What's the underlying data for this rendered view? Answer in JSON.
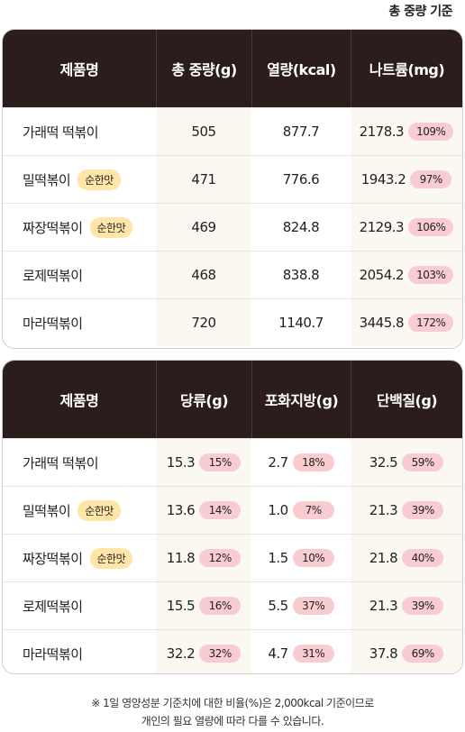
{
  "basis_label": "총 중량 기준",
  "table1": {
    "headers": [
      "제품명",
      "총 중량(g)",
      "열량(kcal)",
      "나트륨(mg)"
    ],
    "rows": [
      {
        "name": "가래떡 떡볶이",
        "tag": "",
        "weight": "505",
        "kcal": "877.7",
        "sodium": "2178.3",
        "sodium_pct": "109%"
      },
      {
        "name": "밀떡볶이",
        "tag": "순한맛",
        "weight": "471",
        "kcal": "776.6",
        "sodium": "1943.2",
        "sodium_pct": "97%"
      },
      {
        "name": "짜장떡볶이",
        "tag": "순한맛",
        "weight": "469",
        "kcal": "824.8",
        "sodium": "2129.3",
        "sodium_pct": "106%"
      },
      {
        "name": "로제떡볶이",
        "tag": "",
        "weight": "468",
        "kcal": "838.8",
        "sodium": "2054.2",
        "sodium_pct": "103%"
      },
      {
        "name": "마라떡볶이",
        "tag": "",
        "weight": "720",
        "kcal": "1140.7",
        "sodium": "3445.8",
        "sodium_pct": "172%"
      }
    ]
  },
  "table2": {
    "headers": [
      "제품명",
      "당류(g)",
      "포화지방(g)",
      "단백질(g)"
    ],
    "rows": [
      {
        "name": "가래떡 떡볶이",
        "tag": "",
        "sugar": "15.3",
        "sugar_pct": "15%",
        "satfat": "2.7",
        "satfat_pct": "18%",
        "protein": "32.5",
        "protein_pct": "59%"
      },
      {
        "name": "밀떡볶이",
        "tag": "순한맛",
        "sugar": "13.6",
        "sugar_pct": "14%",
        "satfat": "1.0",
        "satfat_pct": "7%",
        "protein": "21.3",
        "protein_pct": "39%"
      },
      {
        "name": "짜장떡볶이",
        "tag": "순한맛",
        "sugar": "11.8",
        "sugar_pct": "12%",
        "satfat": "1.5",
        "satfat_pct": "10%",
        "protein": "21.8",
        "protein_pct": "40%"
      },
      {
        "name": "로제떡볶이",
        "tag": "",
        "sugar": "15.5",
        "sugar_pct": "16%",
        "satfat": "5.5",
        "satfat_pct": "37%",
        "protein": "21.3",
        "protein_pct": "39%"
      },
      {
        "name": "마라떡볶이",
        "tag": "",
        "sugar": "32.2",
        "sugar_pct": "32%",
        "satfat": "4.7",
        "satfat_pct": "31%",
        "protein": "37.8",
        "protein_pct": "69%"
      }
    ]
  },
  "footnote_line1": "※ 1일 영양성분 기준치에 대한 비율(%)은 2,000kcal 기준이므로",
  "footnote_line2": "개인의 필요 열량에 따라 다를 수 있습니다.",
  "colors": {
    "header_bg": "#2b1d1b",
    "tag_bg": "#ffe6a8",
    "pct_pill_bg": "#f9ccd0",
    "alt_col_bg": "#faf8f1"
  }
}
